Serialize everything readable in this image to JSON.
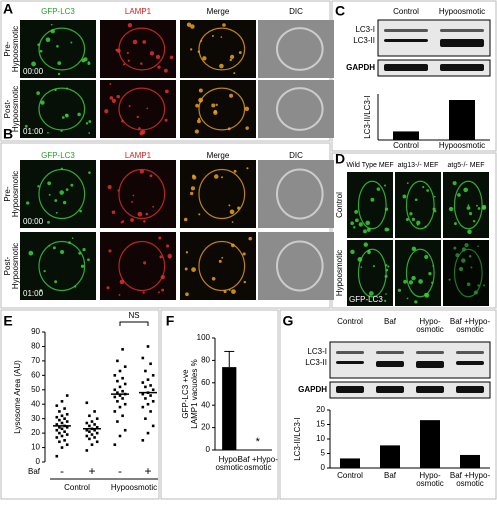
{
  "panels": {
    "A": {
      "letter": "A",
      "columns": [
        "GFP-LC3",
        "LAMP1",
        "Merge",
        "DIC"
      ],
      "rows": [
        {
          "label": [
            "Pre-",
            "Hypoosmotic"
          ],
          "time": "00:00"
        },
        {
          "label": [
            "Post-",
            "Hypoosmotic"
          ],
          "time": "01:00"
        }
      ]
    },
    "B": {
      "letter": "B",
      "columns": [
        "GFP-LC3",
        "LAMP1",
        "Merge",
        "DIC"
      ],
      "rows": [
        {
          "label": [
            "Pre-",
            "Hypoosmotic"
          ],
          "time": "00:00"
        },
        {
          "label": [
            "Post-",
            "Hypoosmotic"
          ],
          "time": "01:00"
        }
      ]
    },
    "C": {
      "letter": "C",
      "lanes": [
        [
          "Control"
        ],
        [
          "Hypoosmotic"
        ]
      ],
      "bands": [
        "LC3-I",
        "LC3-II"
      ],
      "loading": "GAPDH"
    },
    "D": {
      "letter": "D",
      "columns": [
        "Wild Type MEF",
        "atg13-/- MEF",
        "atg5-/- MEF"
      ],
      "rows": [
        "Control",
        "Hypoosmotic"
      ],
      "marker": "GFP-LC3"
    },
    "E": {
      "letter": "E"
    },
    "F": {
      "letter": "F"
    },
    "G": {
      "letter": "G",
      "lanes": [
        [
          "Control"
        ],
        [
          "Baf"
        ],
        [
          "Hypo-",
          "osmotic"
        ],
        [
          "Baf +Hypo-",
          "osmotic"
        ]
      ],
      "bands": [
        "LC3-I",
        "LC3-II"
      ],
      "loading": "GAPDH"
    }
  },
  "chart_data": [
    {
      "type": "bar",
      "ylabel": [
        "LC3-II/LC3-I"
      ],
      "categories": [
        [
          "Control"
        ],
        [
          "Hypoosmotic"
        ]
      ],
      "values": [
        3,
        14
      ],
      "color": "#000000"
    },
    {
      "type": "strip",
      "ylabel": [
        "Lysosome Area (AU)"
      ],
      "categories": [
        "-",
        "+",
        "-",
        "+"
      ],
      "groups": [
        "Control",
        "Hypoosmotic"
      ],
      "treatment": "Baf",
      "annotation": "NS",
      "ylim": [
        0,
        90
      ],
      "yticks": [
        0,
        10,
        20,
        30,
        40,
        50,
        60,
        70,
        80,
        90
      ],
      "series": [
        {
          "values": [
            4,
            10,
            12,
            14,
            15,
            17,
            18,
            19,
            20,
            21,
            22,
            23,
            24,
            24,
            25,
            26,
            27,
            28,
            29,
            30,
            31,
            32,
            33,
            35,
            37,
            39,
            42,
            46
          ],
          "mean": 25
        },
        {
          "values": [
            8,
            12,
            14,
            16,
            17,
            18,
            19,
            20,
            21,
            22,
            22,
            23,
            24,
            25,
            26,
            27,
            28,
            30,
            32,
            35,
            41
          ],
          "mean": 23
        },
        {
          "values": [
            12,
            18,
            22,
            28,
            32,
            35,
            38,
            40,
            42,
            44,
            45,
            46,
            47,
            48,
            49,
            50,
            52,
            54,
            56,
            58,
            60,
            63,
            66,
            70,
            78
          ],
          "mean": 47
        },
        {
          "values": [
            15,
            20,
            25,
            30,
            35,
            38,
            40,
            42,
            44,
            46,
            47,
            48,
            50,
            52,
            53,
            55,
            57,
            60,
            63,
            68,
            72,
            80
          ],
          "mean": 48
        }
      ]
    },
    {
      "type": "bar",
      "ylabel": [
        "GFP-LC3 +ve",
        "LAMP1 vacuoles %"
      ],
      "categories": [
        [
          "Hypo-",
          "osmotic"
        ],
        [
          "Baf +Hypo-",
          "osmotic"
        ]
      ],
      "values": [
        74,
        0
      ],
      "errors": [
        14,
        0
      ],
      "annotation": "*",
      "color": "#000000",
      "ylim": [
        0,
        100
      ],
      "yticks": [
        0,
        20,
        40,
        60,
        80,
        100
      ]
    },
    {
      "type": "bar",
      "ylabel": [
        "LC3-II/LC3-I"
      ],
      "categories": [
        [
          "Control"
        ],
        [
          "Baf"
        ],
        [
          "Hypo-",
          "osmotic"
        ],
        [
          "Baf +Hypo-",
          "osmotic"
        ]
      ],
      "values": [
        3.3,
        7.8,
        16.5,
        4.5
      ],
      "color": "#000000",
      "ylim": [
        0,
        20
      ],
      "yticks": [
        0,
        5,
        10,
        15,
        20
      ]
    }
  ]
}
